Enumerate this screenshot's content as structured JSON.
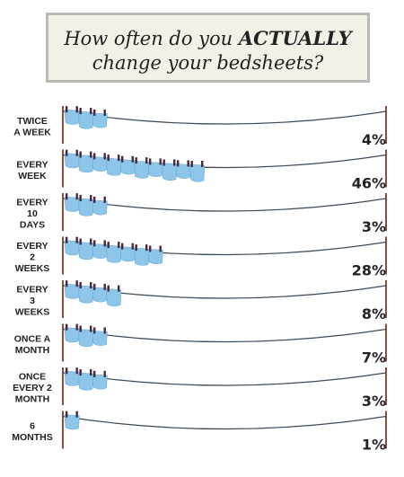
{
  "title": {
    "line1": "How often do you ACTUALLY",
    "line2": "change your bedsheets?"
  },
  "colors": {
    "sheet": "#8ec6ea",
    "pin": "#4a2a3c",
    "pole": "#8a4f3c",
    "rope": "#3c4a56",
    "title_bg": "#f3f1e6",
    "title_border": "#b9b9b5"
  },
  "chart_data": {
    "type": "bar",
    "title": "How often do you ACTUALLY change your bedsheets?",
    "unit": "%",
    "categories": [
      [
        "TWICE",
        "A WEEK"
      ],
      [
        "EVERY",
        "WEEK"
      ],
      [
        "EVERY",
        "10",
        "DAYS"
      ],
      [
        "EVERY",
        "2",
        "WEEKS"
      ],
      [
        "EVERY",
        "3",
        "WEEKS"
      ],
      [
        "ONCE A",
        "MONTH"
      ],
      [
        "ONCE",
        "EVERY 2",
        "MONTH"
      ],
      [
        "6",
        "MONTHS"
      ]
    ],
    "labels": [
      "4%",
      "46%",
      "3%",
      "28%",
      "8%",
      "7%",
      "3%",
      "1%"
    ],
    "values": [
      4,
      46,
      3,
      28,
      8,
      7,
      3,
      1
    ],
    "sheets": [
      3,
      10,
      3,
      7,
      4,
      3,
      3,
      1
    ]
  }
}
